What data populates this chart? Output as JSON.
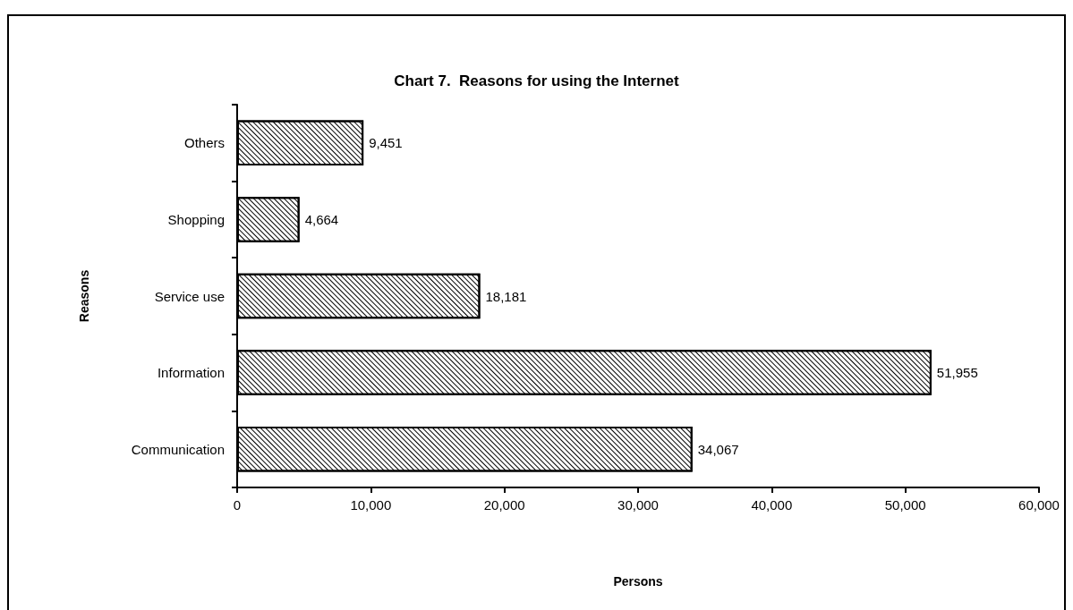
{
  "chart_data": {
    "type": "bar",
    "orientation": "horizontal",
    "title": "Chart 7.  Reasons for using the Internet",
    "xlabel": "Persons",
    "ylabel": "Reasons",
    "categories": [
      "Others",
      "Shopping",
      "Service use",
      "Information",
      "Communication"
    ],
    "values": [
      9451,
      4664,
      18181,
      51955,
      34067
    ],
    "value_labels": [
      "9,451",
      "4,664",
      "18,181",
      "51,955",
      "34,067"
    ],
    "color": "#000000",
    "xlim": [
      0,
      60000
    ],
    "xticks": [
      0,
      {
        "value": 10000,
        "label": "10,000"
      },
      {
        "value": 20000,
        "label": "20,000"
      },
      {
        "value": 30000,
        "label": "30,000"
      },
      {
        "value": 40000,
        "label": "40,000"
      },
      {
        "value": 50000,
        "label": "50,000"
      },
      {
        "value": 60000,
        "label": "60,000"
      }
    ],
    "grid": false
  }
}
